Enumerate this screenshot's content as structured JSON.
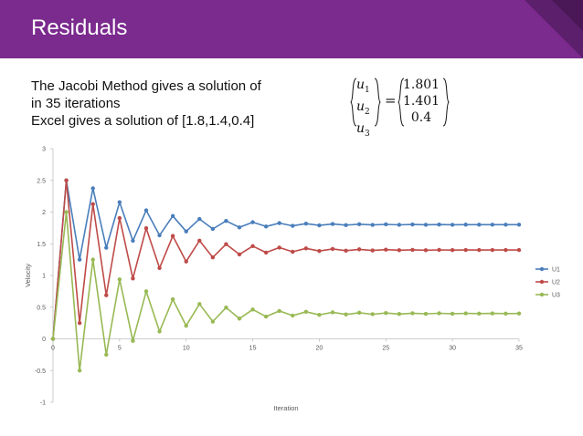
{
  "slide": {
    "title": "Residuals",
    "text_lines": [
      "The Jacobi Method gives a solution of",
      "in 35 iterations",
      "Excel gives a solution of [1.8,1.4,0.4]"
    ],
    "vector_vars": [
      "u",
      "u",
      "u"
    ],
    "vector_subs": [
      "1",
      "2",
      "3"
    ],
    "vector_equals": "=",
    "vector_values": [
      "1.801",
      "1.401",
      "0.4"
    ],
    "colors": {
      "header": "#7b2a8e",
      "header_accent": "#5b1f6b"
    }
  },
  "chart_data": {
    "type": "line",
    "title": "",
    "xlabel": "Iteration",
    "ylabel": "Velocity",
    "xlim": [
      0,
      35
    ],
    "ylim": [
      -1,
      3
    ],
    "xticks": [
      0,
      5,
      10,
      15,
      20,
      25,
      30,
      35
    ],
    "yticks": [
      -1,
      -0.5,
      0,
      0.5,
      1,
      1.5,
      2,
      2.5,
      3
    ],
    "grid": false,
    "legend_position": "right",
    "x": [
      0,
      1,
      2,
      3,
      4,
      5,
      6,
      7,
      8,
      9,
      10,
      11,
      12,
      13,
      14,
      15,
      16,
      17,
      18,
      19,
      20,
      21,
      22,
      23,
      24,
      25,
      26,
      27,
      28,
      29,
      30,
      31,
      32,
      33,
      34,
      35
    ],
    "series": [
      {
        "name": "U1",
        "color": "#4a7ebb",
        "values": [
          0,
          2.5,
          1.25,
          2.375,
          1.4375,
          2.156,
          1.547,
          2.027,
          1.633,
          1.938,
          1.695,
          1.891,
          1.734,
          1.86,
          1.758,
          1.84,
          1.773,
          1.826,
          1.783,
          1.817,
          1.79,
          1.812,
          1.794,
          1.808,
          1.797,
          1.806,
          1.799,
          1.804,
          1.8,
          1.803,
          1.8,
          1.802,
          1.801,
          1.801,
          1.801,
          1.801
        ]
      },
      {
        "name": "U2",
        "color": "#be4b48",
        "values": [
          0,
          2.5,
          0.25,
          2.125,
          0.6875,
          1.906,
          0.953,
          1.746,
          1.117,
          1.623,
          1.22,
          1.549,
          1.285,
          1.494,
          1.332,
          1.463,
          1.361,
          1.44,
          1.374,
          1.427,
          1.386,
          1.418,
          1.391,
          1.412,
          1.394,
          1.407,
          1.398,
          1.404,
          1.399,
          1.403,
          1.4,
          1.402,
          1.401,
          1.401,
          1.401,
          1.401
        ]
      },
      {
        "name": "U3",
        "color": "#98b954",
        "values": [
          0,
          2.0,
          -0.5,
          1.25,
          -0.25,
          0.938,
          -0.031,
          0.75,
          0.117,
          0.625,
          0.207,
          0.549,
          0.273,
          0.494,
          0.32,
          0.463,
          0.351,
          0.44,
          0.367,
          0.427,
          0.378,
          0.418,
          0.385,
          0.412,
          0.389,
          0.407,
          0.392,
          0.404,
          0.395,
          0.403,
          0.397,
          0.402,
          0.398,
          0.401,
          0.399,
          0.4
        ]
      }
    ]
  }
}
